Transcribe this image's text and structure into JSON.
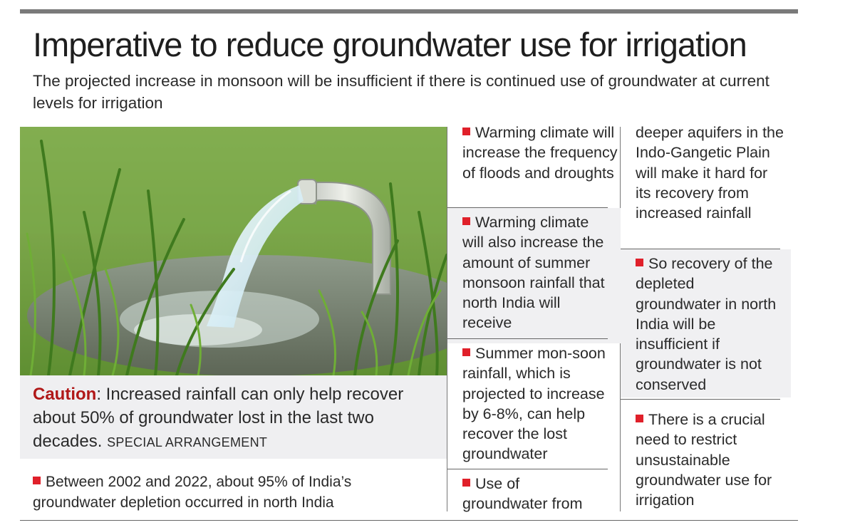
{
  "header": {
    "title": "Imperative to reduce groundwater use for irrigation",
    "subtitle": "The projected increase in monsoon will be insufficient if there is continued use of groundwater at current levels for irrigation"
  },
  "photo": {
    "caption_label": "Caution",
    "caption_text": ": Increased rainfall can only help recover about 50% of groundwater lost in the last two decades.",
    "credit": "SPECIAL ARRANGEMENT"
  },
  "left_bullet": "Between 2002 and 2022, about 95% of India’s groundwater depletion occurred in north India",
  "middle_column": [
    "Warming climate will increase the frequency of floods and droughts",
    "Warming climate will also increase the amount of summer monsoon rainfall that north India will receive",
    "Summer mon-soon rainfall, which is projected to increase by 6-8%, can help recover the lost groundwater",
    "Use of groundwater from"
  ],
  "right_column": [
    "deeper aquifers in the Indo-Gangetic Plain will make it hard for its recovery from increased rainfall",
    "So recovery of the depleted groundwater in north India will be insufficient if groundwater is not conserved",
    "There is a crucial need to restrict unsustainable groundwater use for irrigation"
  ],
  "colors": {
    "accent_red": "#e0202a",
    "caption_label": "#b01818",
    "shade": "#f0f0f2",
    "rule": "#7a7a7a"
  },
  "icons": [
    "bullet-square-icon"
  ]
}
